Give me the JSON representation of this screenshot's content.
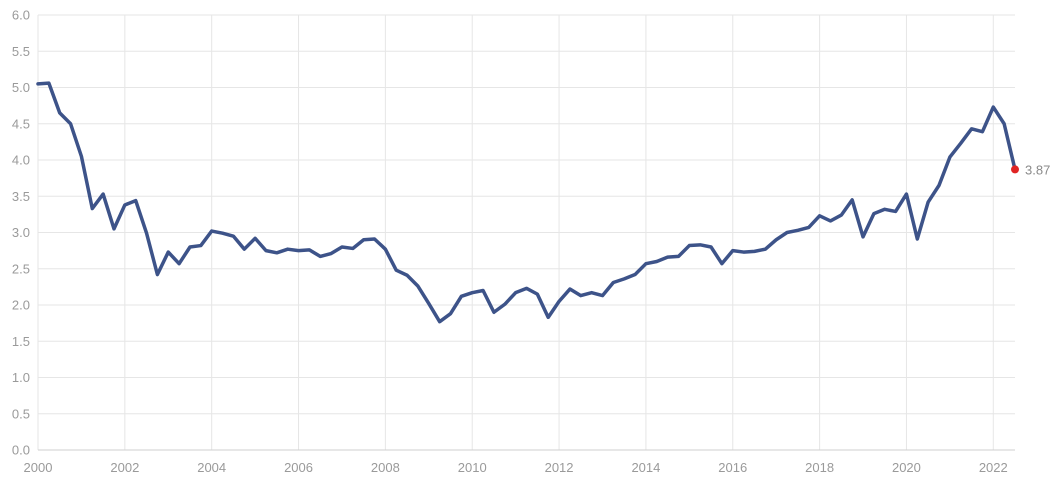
{
  "chart_data": {
    "type": "line",
    "title": "",
    "xlabel": "",
    "ylabel": "",
    "xlim": [
      2000,
      2022.5
    ],
    "ylim": [
      0,
      6
    ],
    "grid": true,
    "x_ticks": [
      2000,
      2002,
      2004,
      2006,
      2008,
      2010,
      2012,
      2014,
      2016,
      2018,
      2020,
      2022
    ],
    "y_ticks": [
      0.0,
      0.5,
      1.0,
      1.5,
      2.0,
      2.5,
      3.0,
      3.5,
      4.0,
      4.5,
      5.0,
      5.5,
      6.0
    ],
    "y_tick_labels": [
      "0.0",
      "0.5",
      "1.0",
      "1.5",
      "2.0",
      "2.5",
      "3.0",
      "3.5",
      "4.0",
      "4.5",
      "5.0",
      "5.5",
      "6.0"
    ],
    "colors": {
      "line": "#3d5389",
      "last_point": "#e02424"
    },
    "last_value_label": "3.87",
    "series": [
      {
        "x": [
          2000.0,
          2000.25,
          2000.5,
          2000.75,
          2001.0,
          2001.25,
          2001.5,
          2001.75,
          2002.0,
          2002.25,
          2002.5,
          2002.75,
          2003.0,
          2003.25,
          2003.5,
          2003.75,
          2004.0,
          2004.25,
          2004.5,
          2004.75,
          2005.0,
          2005.25,
          2005.5,
          2005.75,
          2006.0,
          2006.25,
          2006.5,
          2006.75,
          2007.0,
          2007.25,
          2007.5,
          2007.75,
          2008.0,
          2008.25,
          2008.5,
          2008.75,
          2009.0,
          2009.25,
          2009.5,
          2009.75,
          2010.0,
          2010.25,
          2010.5,
          2010.75,
          2011.0,
          2011.25,
          2011.5,
          2011.75,
          2012.0,
          2012.25,
          2012.5,
          2012.75,
          2013.0,
          2013.25,
          2013.5,
          2013.75,
          2014.0,
          2014.25,
          2014.5,
          2014.75,
          2015.0,
          2015.25,
          2015.5,
          2015.75,
          2016.0,
          2016.25,
          2016.5,
          2016.75,
          2017.0,
          2017.25,
          2017.5,
          2017.75,
          2018.0,
          2018.25,
          2018.5,
          2018.75,
          2019.0,
          2019.25,
          2019.5,
          2019.75,
          2020.0,
          2020.25,
          2020.5,
          2020.75,
          2021.0,
          2021.25,
          2021.5,
          2021.75,
          2022.0,
          2022.25,
          2022.5
        ],
        "y": [
          5.05,
          5.06,
          4.65,
          4.5,
          4.05,
          3.33,
          3.53,
          3.05,
          3.38,
          3.44,
          2.99,
          2.42,
          2.73,
          2.57,
          2.8,
          2.82,
          3.02,
          2.99,
          2.95,
          2.77,
          2.92,
          2.75,
          2.72,
          2.77,
          2.75,
          2.76,
          2.67,
          2.71,
          2.8,
          2.78,
          2.9,
          2.91,
          2.77,
          2.48,
          2.41,
          2.26,
          2.02,
          1.77,
          1.88,
          2.12,
          2.17,
          2.2,
          1.9,
          2.01,
          2.17,
          2.23,
          2.15,
          1.83,
          2.05,
          2.22,
          2.13,
          2.17,
          2.13,
          2.31,
          2.36,
          2.42,
          2.57,
          2.6,
          2.66,
          2.67,
          2.82,
          2.83,
          2.8,
          2.57,
          2.75,
          2.73,
          2.74,
          2.77,
          2.9,
          3.0,
          3.03,
          3.07,
          3.23,
          3.16,
          3.24,
          3.45,
          2.94,
          3.26,
          3.32,
          3.29,
          3.53,
          2.91,
          3.42,
          3.65,
          4.04,
          4.23,
          4.43,
          4.39,
          4.73,
          4.5,
          3.87
        ]
      }
    ]
  }
}
